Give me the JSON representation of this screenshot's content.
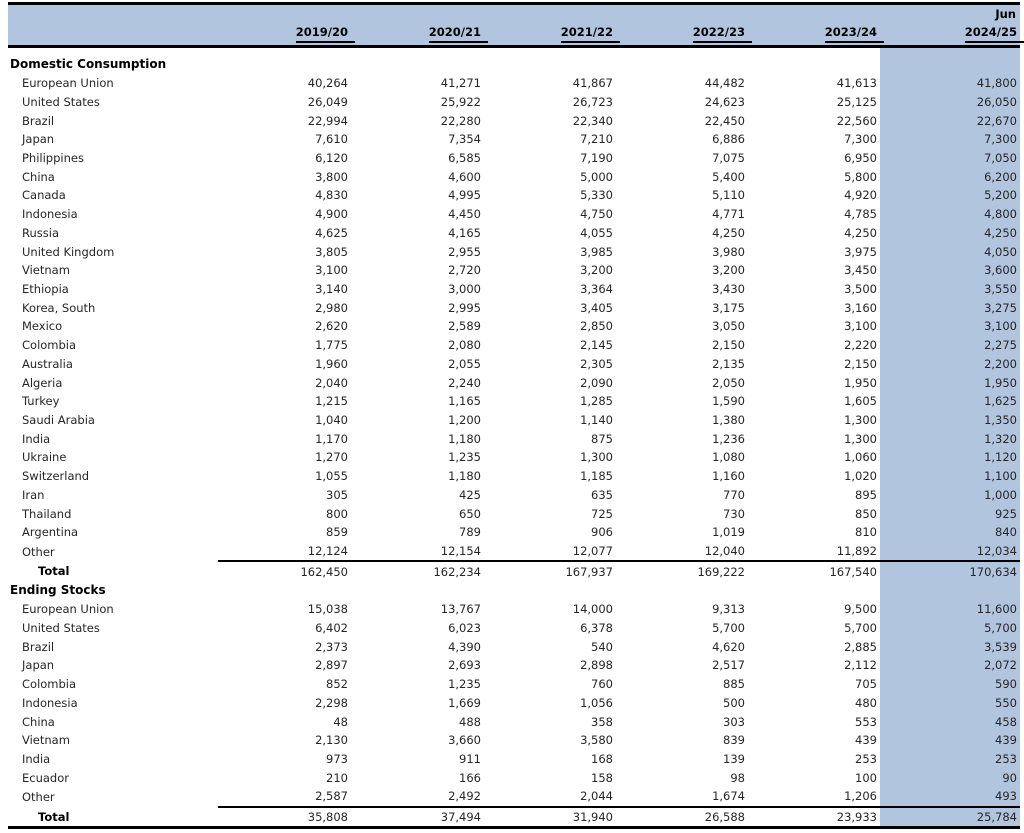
{
  "header": {
    "period_label": "Jun",
    "years": [
      "2019/20",
      "2020/21",
      "2021/22",
      "2022/23",
      "2023/24",
      "2024/25"
    ]
  },
  "colors": {
    "header_bg": "#b2c5de",
    "highlight_column_bg": "#b2c5de",
    "rule": "#000000"
  },
  "table": {
    "sections": [
      {
        "title": "Domestic Consumption",
        "rows": [
          {
            "label": "European Union",
            "values": [
              "40,264",
              "41,271",
              "41,867",
              "44,482",
              "41,613",
              "41,800"
            ]
          },
          {
            "label": "United States",
            "values": [
              "26,049",
              "25,922",
              "26,723",
              "24,623",
              "25,125",
              "26,050"
            ]
          },
          {
            "label": "Brazil",
            "values": [
              "22,994",
              "22,280",
              "22,340",
              "22,450",
              "22,560",
              "22,670"
            ]
          },
          {
            "label": "Japan",
            "values": [
              "7,610",
              "7,354",
              "7,210",
              "6,886",
              "7,300",
              "7,300"
            ]
          },
          {
            "label": "Philippines",
            "values": [
              "6,120",
              "6,585",
              "7,190",
              "7,075",
              "6,950",
              "7,050"
            ]
          },
          {
            "label": "China",
            "values": [
              "3,800",
              "4,600",
              "5,000",
              "5,400",
              "5,800",
              "6,200"
            ]
          },
          {
            "label": "Canada",
            "values": [
              "4,830",
              "4,995",
              "5,330",
              "5,110",
              "4,920",
              "5,200"
            ]
          },
          {
            "label": "Indonesia",
            "values": [
              "4,900",
              "4,450",
              "4,750",
              "4,771",
              "4,785",
              "4,800"
            ]
          },
          {
            "label": "Russia",
            "values": [
              "4,625",
              "4,165",
              "4,055",
              "4,250",
              "4,250",
              "4,250"
            ]
          },
          {
            "label": "United Kingdom",
            "values": [
              "3,805",
              "2,955",
              "3,985",
              "3,980",
              "3,975",
              "4,050"
            ]
          },
          {
            "label": "Vietnam",
            "values": [
              "3,100",
              "2,720",
              "3,200",
              "3,200",
              "3,450",
              "3,600"
            ]
          },
          {
            "label": "Ethiopia",
            "values": [
              "3,140",
              "3,000",
              "3,364",
              "3,430",
              "3,500",
              "3,550"
            ]
          },
          {
            "label": "Korea, South",
            "values": [
              "2,980",
              "2,995",
              "3,405",
              "3,175",
              "3,160",
              "3,275"
            ]
          },
          {
            "label": "Mexico",
            "values": [
              "2,620",
              "2,589",
              "2,850",
              "3,050",
              "3,100",
              "3,100"
            ]
          },
          {
            "label": "Colombia",
            "values": [
              "1,775",
              "2,080",
              "2,145",
              "2,150",
              "2,220",
              "2,275"
            ]
          },
          {
            "label": "Australia",
            "values": [
              "1,960",
              "2,055",
              "2,305",
              "2,135",
              "2,150",
              "2,200"
            ]
          },
          {
            "label": "Algeria",
            "values": [
              "2,040",
              "2,240",
              "2,090",
              "2,050",
              "1,950",
              "1,950"
            ]
          },
          {
            "label": "Turkey",
            "values": [
              "1,215",
              "1,165",
              "1,285",
              "1,590",
              "1,605",
              "1,625"
            ]
          },
          {
            "label": "Saudi Arabia",
            "values": [
              "1,040",
              "1,200",
              "1,140",
              "1,380",
              "1,300",
              "1,350"
            ]
          },
          {
            "label": "India",
            "values": [
              "1,170",
              "1,180",
              "875",
              "1,236",
              "1,300",
              "1,320"
            ]
          },
          {
            "label": "Ukraine",
            "values": [
              "1,270",
              "1,235",
              "1,300",
              "1,080",
              "1,060",
              "1,120"
            ]
          },
          {
            "label": "Switzerland",
            "values": [
              "1,055",
              "1,180",
              "1,185",
              "1,160",
              "1,020",
              "1,100"
            ]
          },
          {
            "label": "Iran",
            "values": [
              "305",
              "425",
              "635",
              "770",
              "895",
              "1,000"
            ]
          },
          {
            "label": "Thailand",
            "values": [
              "800",
              "650",
              "725",
              "730",
              "850",
              "925"
            ]
          },
          {
            "label": "Argentina",
            "values": [
              "859",
              "789",
              "906",
              "1,019",
              "810",
              "840"
            ]
          },
          {
            "label": "Other",
            "values": [
              "12,124",
              "12,154",
              "12,077",
              "12,040",
              "11,892",
              "12,034"
            ]
          }
        ],
        "total": {
          "label": "Total",
          "values": [
            "162,450",
            "162,234",
            "167,937",
            "169,222",
            "167,540",
            "170,634"
          ]
        }
      },
      {
        "title": "Ending Stocks",
        "rows": [
          {
            "label": "European Union",
            "values": [
              "15,038",
              "13,767",
              "14,000",
              "9,313",
              "9,500",
              "11,600"
            ]
          },
          {
            "label": "United States",
            "values": [
              "6,402",
              "6,023",
              "6,378",
              "5,700",
              "5,700",
              "5,700"
            ]
          },
          {
            "label": "Brazil",
            "values": [
              "2,373",
              "4,390",
              "540",
              "4,620",
              "2,885",
              "3,539"
            ]
          },
          {
            "label": "Japan",
            "values": [
              "2,897",
              "2,693",
              "2,898",
              "2,517",
              "2,112",
              "2,072"
            ]
          },
          {
            "label": "Colombia",
            "values": [
              "852",
              "1,235",
              "760",
              "885",
              "705",
              "590"
            ]
          },
          {
            "label": "Indonesia",
            "values": [
              "2,298",
              "1,669",
              "1,056",
              "500",
              "480",
              "550"
            ]
          },
          {
            "label": "China",
            "values": [
              "48",
              "488",
              "358",
              "303",
              "553",
              "458"
            ]
          },
          {
            "label": "Vietnam",
            "values": [
              "2,130",
              "3,660",
              "3,580",
              "839",
              "439",
              "439"
            ]
          },
          {
            "label": "India",
            "values": [
              "973",
              "911",
              "168",
              "139",
              "253",
              "253"
            ]
          },
          {
            "label": "Ecuador",
            "values": [
              "210",
              "166",
              "158",
              "98",
              "100",
              "90"
            ]
          },
          {
            "label": "Other",
            "values": [
              "2,587",
              "2,492",
              "2,044",
              "1,674",
              "1,206",
              "493"
            ]
          }
        ],
        "total": {
          "label": "Total",
          "values": [
            "35,808",
            "37,494",
            "31,940",
            "26,588",
            "23,933",
            "25,784"
          ]
        }
      }
    ]
  }
}
